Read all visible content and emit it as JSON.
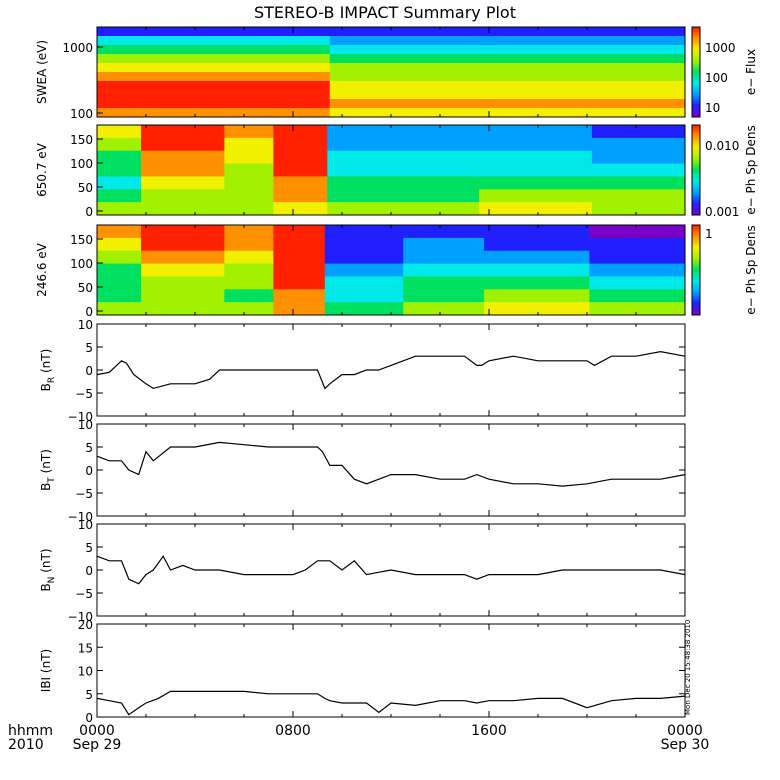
{
  "title": "STEREO-B IMPACT Summary Plot",
  "timestamp": "Mon Dec 20 15:48:38 2010",
  "x_axis": {
    "hhmm_label": "hhmm",
    "year_label": "2010",
    "ticks": [
      {
        "hour": 0,
        "label": "0000",
        "date": "Sep 29"
      },
      {
        "hour": 8,
        "label": "0800",
        "date": ""
      },
      {
        "hour": 16,
        "label": "1600",
        "date": ""
      },
      {
        "hour": 24,
        "label": "0000",
        "date": "Sep 30"
      }
    ],
    "xlim": [
      0,
      24
    ]
  },
  "colors": {
    "rainbow": [
      "#7a00c8",
      "#2020ff",
      "#00a0ff",
      "#00e8e8",
      "#00e060",
      "#a0f000",
      "#f0f000",
      "#ff9000",
      "#ff2000"
    ],
    "line": "#000000"
  },
  "spectrograms": [
    {
      "ylabel": "SWEA (eV)",
      "yticks": [
        "1000",
        "100"
      ],
      "colorbar_label": "e− Flux",
      "colorbar_ticks": [
        "1000",
        "100",
        "10"
      ],
      "bands": [
        {
          "t": [
            0,
            9.5
          ],
          "levels": [
            1,
            3,
            4,
            5,
            6,
            7,
            8,
            8,
            8,
            7
          ]
        },
        {
          "t": [
            9.5,
            24
          ],
          "levels": [
            1,
            2,
            3,
            4,
            5,
            5,
            6,
            6,
            7,
            6
          ]
        }
      ]
    },
    {
      "ylabel": "650.7 eV",
      "yticks": [
        "150",
        "100",
        "50",
        "0"
      ],
      "colorbar_label": "e− Ph Sp Dens",
      "colorbar_ticks": [
        "0.010",
        "0.001"
      ],
      "bands": [
        {
          "t": [
            0,
            1.8
          ],
          "levels": [
            6,
            5,
            4,
            4,
            3,
            4,
            5
          ]
        },
        {
          "t": [
            1.8,
            5.2
          ],
          "levels": [
            8,
            8,
            7,
            7,
            6,
            5,
            5
          ]
        },
        {
          "t": [
            5.2,
            7.2
          ],
          "levels": [
            7,
            6,
            6,
            5,
            5,
            5,
            5
          ]
        },
        {
          "t": [
            7.2,
            9.4
          ],
          "levels": [
            8,
            8,
            8,
            8,
            7,
            7,
            6
          ]
        },
        {
          "t": [
            9.4,
            15.6
          ],
          "levels": [
            2,
            2,
            3,
            3,
            4,
            4,
            5
          ]
        },
        {
          "t": [
            15.6,
            20.2
          ],
          "levels": [
            2,
            2,
            3,
            3,
            4,
            5,
            6
          ]
        },
        {
          "t": [
            20.2,
            24
          ],
          "levels": [
            1,
            2,
            2,
            3,
            4,
            5,
            5
          ]
        }
      ]
    },
    {
      "ylabel": "246.6 eV",
      "yticks": [
        "150",
        "100",
        "50",
        "0"
      ],
      "colorbar_label": "e− Ph Sp Dens",
      "colorbar_ticks": [
        "1"
      ],
      "bands": [
        {
          "t": [
            0,
            1.8
          ],
          "levels": [
            7,
            6,
            5,
            4,
            4,
            4,
            5
          ]
        },
        {
          "t": [
            1.8,
            5.2
          ],
          "levels": [
            8,
            8,
            7,
            6,
            5,
            5,
            5
          ]
        },
        {
          "t": [
            5.2,
            7.2
          ],
          "levels": [
            7,
            7,
            6,
            5,
            5,
            4,
            5
          ]
        },
        {
          "t": [
            7.2,
            9.3
          ],
          "levels": [
            8,
            8,
            8,
            8,
            8,
            7,
            7
          ]
        },
        {
          "t": [
            9.3,
            12.5
          ],
          "levels": [
            1,
            1,
            1,
            2,
            3,
            3,
            4
          ]
        },
        {
          "t": [
            12.5,
            15.8
          ],
          "levels": [
            1,
            2,
            2,
            3,
            4,
            4,
            5
          ]
        },
        {
          "t": [
            15.8,
            20.1
          ],
          "levels": [
            1,
            1,
            2,
            3,
            4,
            5,
            6
          ]
        },
        {
          "t": [
            20.1,
            24
          ],
          "levels": [
            0,
            1,
            1,
            2,
            3,
            4,
            5
          ]
        }
      ]
    }
  ],
  "chart_data": [
    {
      "type": "line",
      "ylabel_main": "B",
      "ylabel_sub": "R",
      "ylabel_unit": "(nT)",
      "ylim": [
        -10,
        10
      ],
      "yticks": [
        "10",
        "5",
        "0",
        "−5",
        "−10"
      ],
      "ytick_values": [
        10,
        5,
        0,
        -5,
        -10
      ],
      "x": [
        0,
        0.5,
        1,
        1.2,
        1.5,
        2,
        2.3,
        3,
        4,
        4.6,
        5,
        6,
        7,
        8,
        8.8,
        9,
        9.3,
        9.5,
        10,
        10.5,
        11,
        11.5,
        12,
        13,
        14,
        15,
        15.5,
        15.7,
        16,
        17,
        18,
        19,
        20,
        20.3,
        21,
        22,
        23,
        24
      ],
      "y": [
        -1,
        -0.5,
        2,
        1.5,
        -1,
        -3,
        -4,
        -3,
        -3,
        -2,
        0,
        0,
        0,
        0,
        0,
        0,
        -4,
        -3,
        -1,
        -1,
        0,
        0,
        1,
        3,
        3,
        3,
        1,
        1,
        2,
        3,
        2,
        2,
        2,
        1,
        3,
        3,
        4,
        3
      ]
    },
    {
      "type": "line",
      "ylabel_main": "B",
      "ylabel_sub": "T",
      "ylabel_unit": "(nT)",
      "ylim": [
        -10,
        10
      ],
      "yticks": [
        "10",
        "5",
        "0",
        "−5",
        "−10"
      ],
      "ytick_values": [
        10,
        5,
        0,
        -5,
        -10
      ],
      "x": [
        0,
        0.5,
        1,
        1.3,
        1.7,
        2,
        2.3,
        3,
        4,
        5,
        6,
        7,
        8,
        9,
        9.2,
        9.5,
        10,
        10.5,
        11,
        12,
        13,
        14,
        15,
        15.5,
        16,
        17,
        18,
        19,
        20,
        21,
        22,
        23,
        24
      ],
      "y": [
        3,
        2,
        2,
        0,
        -1,
        4,
        2,
        5,
        5,
        6,
        5.5,
        5,
        5,
        5,
        4,
        1,
        1,
        -2,
        -3,
        -1,
        -1,
        -2,
        -2,
        -1,
        -2,
        -3,
        -3,
        -3.5,
        -3,
        -2,
        -2,
        -2,
        -1
      ]
    },
    {
      "type": "line",
      "ylabel_main": "B",
      "ylabel_sub": "N",
      "ylabel_unit": "(nT)",
      "ylim": [
        -10,
        10
      ],
      "yticks": [
        "10",
        "5",
        "0",
        "−5",
        "−10"
      ],
      "ytick_values": [
        10,
        5,
        0,
        -5,
        -10
      ],
      "x": [
        0,
        0.5,
        1,
        1.3,
        1.7,
        2,
        2.3,
        2.7,
        3,
        3.5,
        4,
        5,
        6,
        7,
        8,
        8.5,
        9,
        9.5,
        10,
        10.5,
        11,
        12,
        13,
        14,
        15,
        15.5,
        16,
        17,
        18,
        19,
        20,
        21,
        22,
        23,
        24
      ],
      "y": [
        3,
        2,
        2,
        -2,
        -3,
        -1,
        0,
        3,
        0,
        1,
        0,
        0,
        -1,
        -1,
        -1,
        0,
        2,
        2,
        0,
        2,
        -1,
        0,
        -1,
        -1,
        -1,
        -2,
        -1,
        -1,
        -1,
        0,
        0,
        0,
        0,
        0,
        -1
      ]
    },
    {
      "type": "line",
      "ylabel_main": "IBI",
      "ylabel_sub": "",
      "ylabel_unit": "(nT)",
      "ylim": [
        0,
        20
      ],
      "yticks": [
        "20",
        "15",
        "10",
        "5",
        "0"
      ],
      "ytick_values": [
        20,
        15,
        10,
        5,
        0
      ],
      "x": [
        0,
        0.5,
        1,
        1.3,
        1.7,
        2,
        2.5,
        3,
        4,
        5,
        6,
        7,
        8,
        9,
        9.3,
        9.5,
        10,
        11,
        11.5,
        12,
        13,
        14,
        15,
        15.5,
        16,
        17,
        18,
        19,
        20,
        21,
        22,
        23,
        24
      ],
      "y": [
        4,
        3.5,
        3,
        0.5,
        2,
        3,
        4,
        5.5,
        5.5,
        5.5,
        5.5,
        5,
        5,
        5,
        4,
        3.5,
        3,
        3,
        1,
        3,
        2.5,
        3.5,
        3.5,
        3,
        3.5,
        3.5,
        4,
        4,
        2,
        3.5,
        4,
        4,
        4.5
      ]
    }
  ]
}
